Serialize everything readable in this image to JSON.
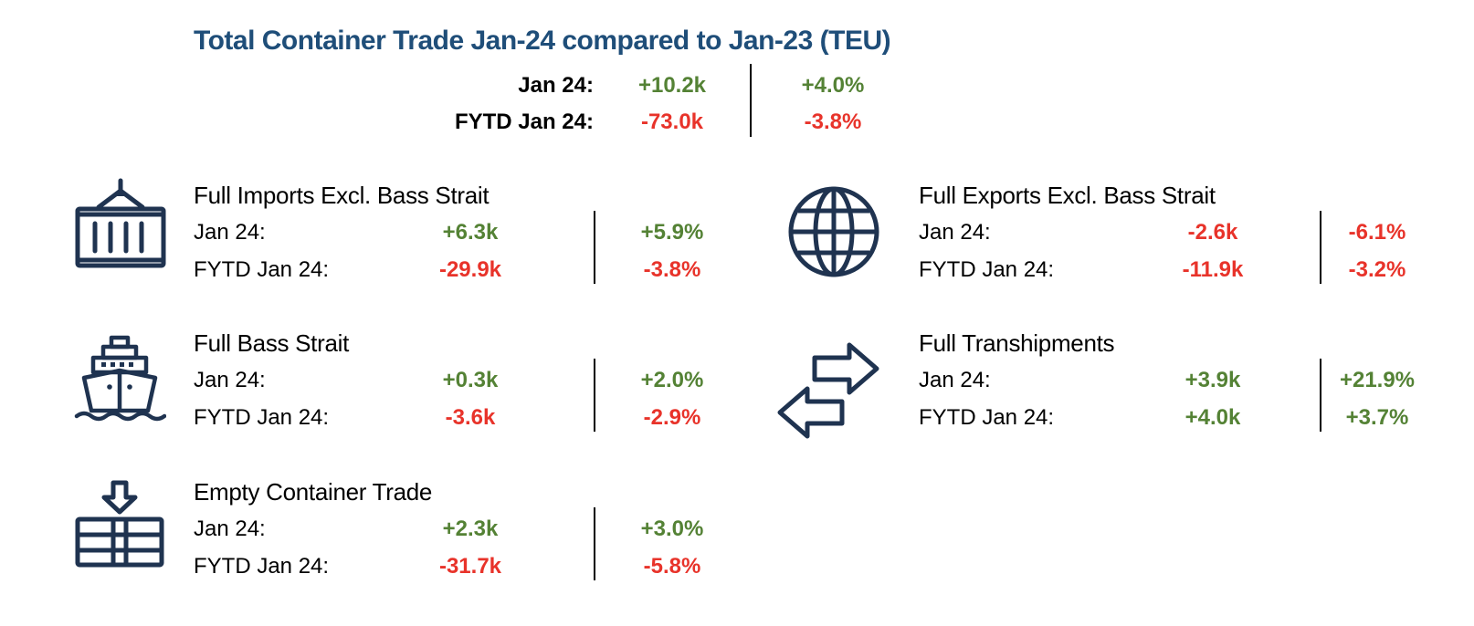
{
  "title": "Total Container Trade Jan-24 compared to Jan-23 (TEU)",
  "summary": {
    "rows": [
      {
        "label": "Jan  24:",
        "value": "+10.2k",
        "pct": "+4.0%"
      },
      {
        "label": "FYTD Jan 24:",
        "value": "-73.0k",
        "pct": "-3.8%"
      }
    ]
  },
  "sections": {
    "imports": {
      "icon": "shipping-container-icon",
      "title": "Full Imports Excl. Bass Strait",
      "rows": [
        {
          "label": "Jan  24:",
          "value": "+6.3k",
          "pct": "+5.9%"
        },
        {
          "label": "FYTD Jan  24:",
          "value": "-29.9k",
          "pct": "-3.8%"
        }
      ]
    },
    "exports": {
      "icon": "globe-icon",
      "title": "Full Exports Excl. Bass Strait",
      "rows": [
        {
          "label": "Jan  24:",
          "value": "-2.6k",
          "pct": "-6.1%"
        },
        {
          "label": "FYTD Jan  24:",
          "value": "-11.9k",
          "pct": "-3.2%"
        }
      ]
    },
    "bass_strait": {
      "icon": "ship-icon",
      "title": "Full Bass Strait",
      "rows": [
        {
          "label": "Jan  24:",
          "value": "+0.3k",
          "pct": "+2.0%"
        },
        {
          "label": "FYTD Jan  24:",
          "value": "-3.6k",
          "pct": "-2.9%"
        }
      ]
    },
    "transhipments": {
      "icon": "exchange-arrows-icon",
      "title": "Full Transhipments",
      "rows": [
        {
          "label": "Jan  24:",
          "value": "+3.9k",
          "pct": "+21.9%"
        },
        {
          "label": "FYTD Jan  24:",
          "value": "+4.0k",
          "pct": "+3.7%"
        }
      ]
    },
    "empty": {
      "icon": "empty-container-icon",
      "title": "Empty Container Trade",
      "rows": [
        {
          "label": "Jan  24:",
          "value": "+2.3k",
          "pct": "+3.0%"
        },
        {
          "label": "FYTD Jan  24:",
          "value": "-31.7k",
          "pct": "-5.8%"
        }
      ]
    }
  },
  "colors": {
    "title": "#1f4e79",
    "icon": "#1f3350",
    "positive": "#548235",
    "negative": "#e8332a"
  }
}
